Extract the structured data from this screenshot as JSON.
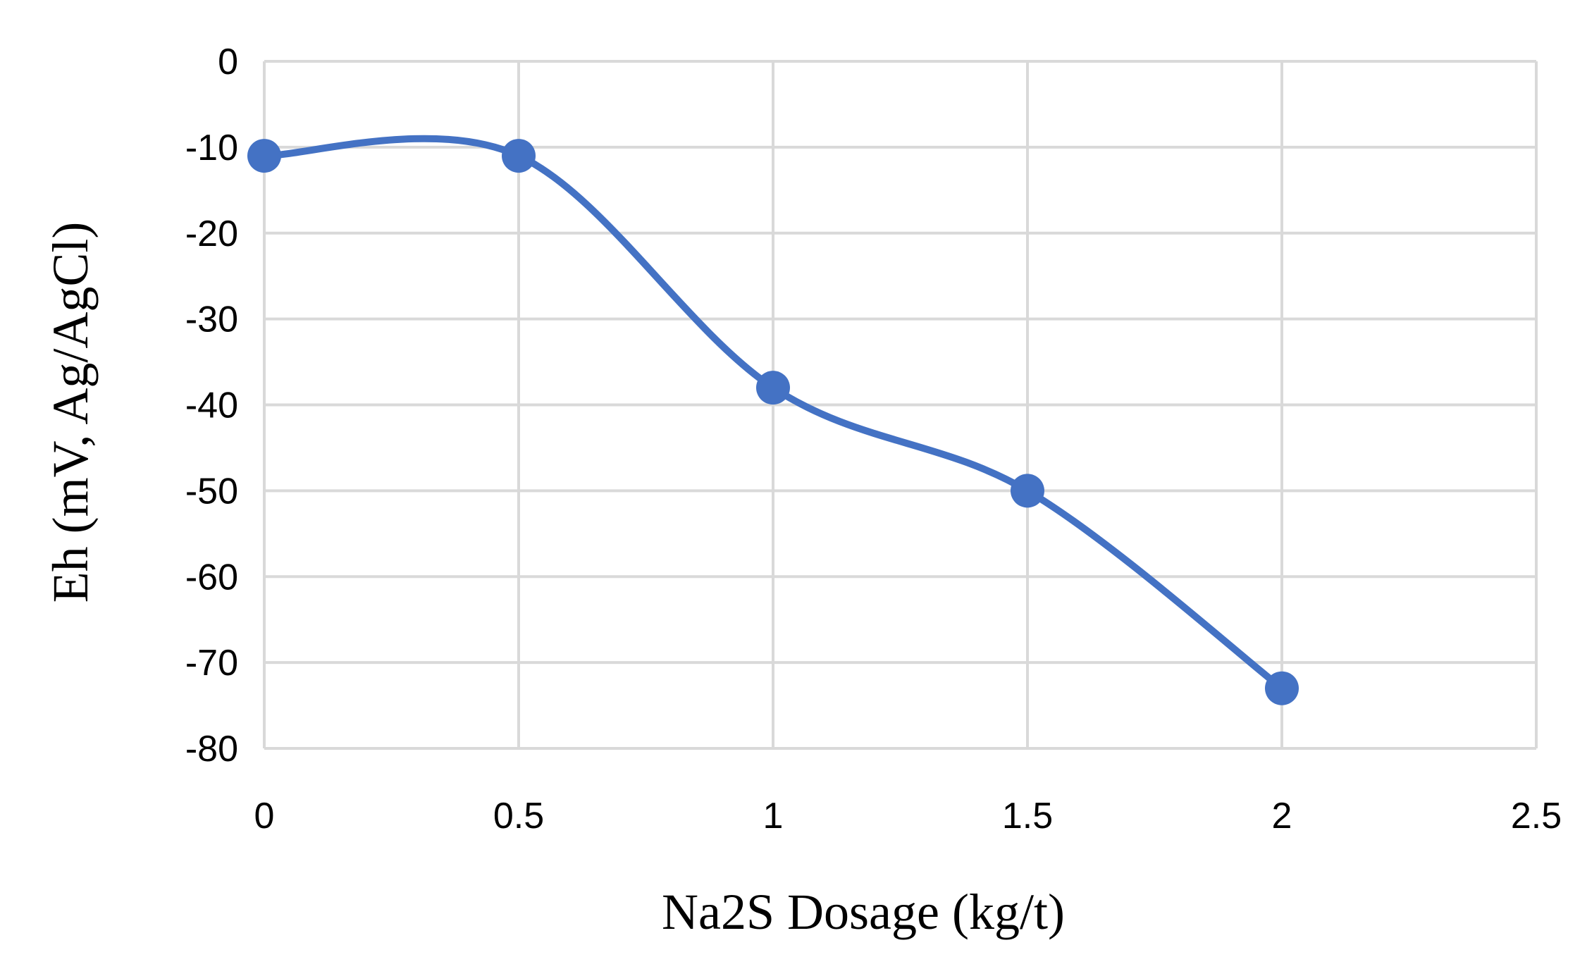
{
  "chart_data": {
    "type": "line",
    "title": "",
    "xlabel": "Na2S Dosage (kg/t)",
    "ylabel": "Eh (mV, Ag/AgCl)",
    "xlim": [
      0,
      2.5
    ],
    "ylim": [
      -80,
      0
    ],
    "xticks": [
      0,
      0.5,
      1,
      1.5,
      2,
      2.5
    ],
    "xtick_labels": [
      "0",
      "0.5",
      "1",
      "1.5",
      "2",
      "2.5"
    ],
    "yticks": [
      0,
      -10,
      -20,
      -30,
      -40,
      -50,
      -60,
      -70,
      -80
    ],
    "ytick_labels": [
      "0",
      "-10",
      "-20",
      "-30",
      "-40",
      "-50",
      "-60",
      "-70",
      "-80"
    ],
    "grid": true,
    "smooth": true,
    "series": [
      {
        "color": "#4472c4",
        "marker": "circle",
        "x": [
          0,
          0.5,
          1,
          1.5,
          2
        ],
        "y": [
          -11,
          -11,
          -38,
          -50,
          -73
        ]
      }
    ]
  }
}
